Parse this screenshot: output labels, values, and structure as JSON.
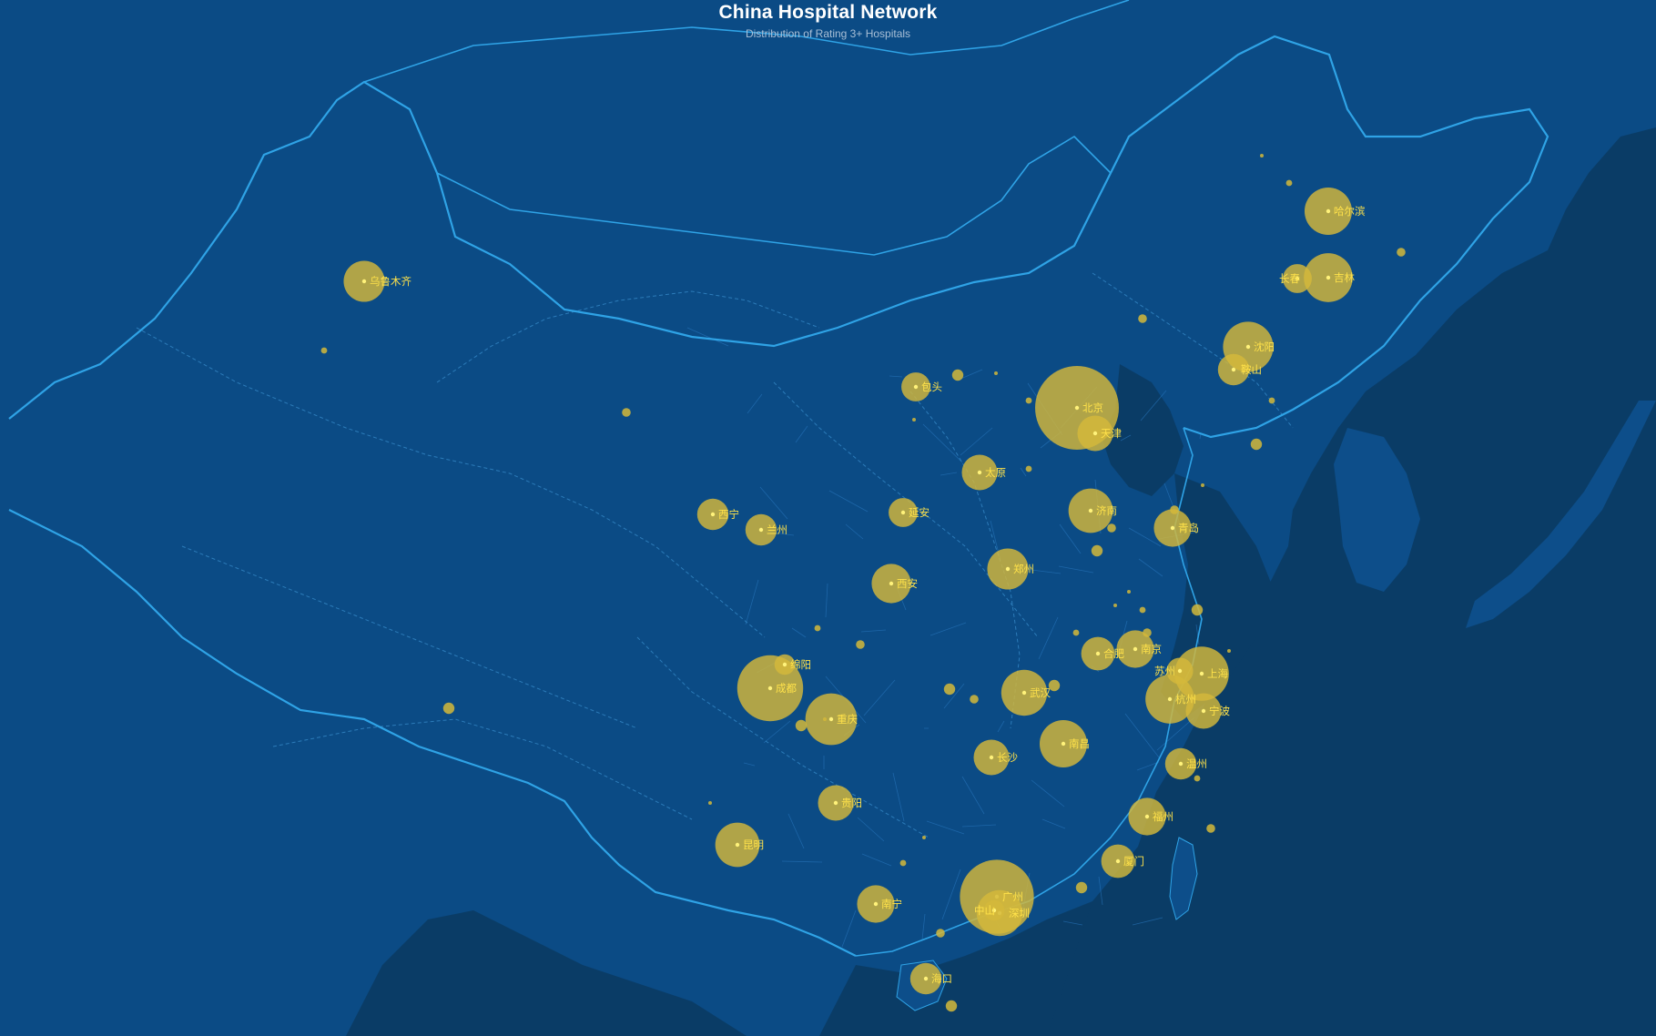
{
  "title": "China Hospital Network",
  "subtitle": "Distribution of Rating 3+ Hospitals",
  "colors": {
    "land": "#0b4b85",
    "sea": "#0a3c66",
    "land_dark": "#0d4e8a",
    "border": "#2fa3e6",
    "province_border": "#3a90cf",
    "roads": "#2a78bf",
    "bubble": "#d4b83a",
    "label": "#ffe24a"
  },
  "map": {
    "type": "bubble-map",
    "region": "China",
    "bubble_metric": "relative hospital count (not printed)",
    "cities": [
      {
        "name": "北京",
        "size": 100,
        "label": true
      },
      {
        "name": "天津",
        "size": 18,
        "label": true
      },
      {
        "name": "广州",
        "size": 78,
        "label": true
      },
      {
        "name": "深圳",
        "size": 30,
        "label": true
      },
      {
        "name": "中山",
        "size": 6,
        "label": true
      },
      {
        "name": "成都",
        "size": 62,
        "label": true
      },
      {
        "name": "绵阳",
        "size": 6,
        "label": true
      },
      {
        "name": "重庆",
        "size": 38,
        "label": true
      },
      {
        "name": "上海",
        "size": 42,
        "label": true
      },
      {
        "name": "苏州",
        "size": 10,
        "label": true
      },
      {
        "name": "杭州",
        "size": 34,
        "label": true
      },
      {
        "name": "宁波",
        "size": 18,
        "label": true
      },
      {
        "name": "南京",
        "size": 20,
        "label": true
      },
      {
        "name": "合肥",
        "size": 16,
        "label": true
      },
      {
        "name": "武汉",
        "size": 30,
        "label": true
      },
      {
        "name": "南昌",
        "size": 32,
        "label": true
      },
      {
        "name": "长沙",
        "size": 18,
        "label": true
      },
      {
        "name": "郑州",
        "size": 24,
        "label": true
      },
      {
        "name": "济南",
        "size": 28,
        "label": true
      },
      {
        "name": "青岛",
        "size": 20,
        "label": true
      },
      {
        "name": "太原",
        "size": 18,
        "label": true
      },
      {
        "name": "西安",
        "size": 22,
        "label": true
      },
      {
        "name": "延安",
        "size": 12,
        "label": true
      },
      {
        "name": "兰州",
        "size": 14,
        "label": true
      },
      {
        "name": "西宁",
        "size": 14,
        "label": true
      },
      {
        "name": "乌鲁木齐",
        "size": 24,
        "label": true
      },
      {
        "name": "包头",
        "size": 12,
        "label": true
      },
      {
        "name": "沈阳",
        "size": 36,
        "label": true
      },
      {
        "name": "鞍山",
        "size": 14,
        "label": true
      },
      {
        "name": "哈尔滨",
        "size": 32,
        "label": true
      },
      {
        "name": "长春",
        "size": 12,
        "label": true
      },
      {
        "name": "吉林",
        "size": 34,
        "label": true
      },
      {
        "name": "贵阳",
        "size": 18,
        "label": true
      },
      {
        "name": "昆明",
        "size": 28,
        "label": true
      },
      {
        "name": "南宁",
        "size": 20,
        "label": true
      },
      {
        "name": "福州",
        "size": 20,
        "label": true
      },
      {
        "name": "厦门",
        "size": 16,
        "label": true
      },
      {
        "name": "温州",
        "size": 14,
        "label": true
      },
      {
        "name": "海口",
        "size": 14,
        "label": true
      }
    ]
  }
}
